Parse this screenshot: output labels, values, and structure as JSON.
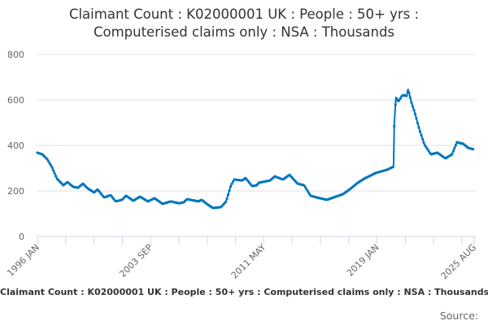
{
  "chart_data": {
    "type": "line",
    "title_line1": "Claimant Count : K02000001 UK : People : 50+ yrs :",
    "title_line2": "Computerised claims only : NSA : Thousands",
    "xlabel": "",
    "ylabel": "",
    "ylim": [
      0,
      800
    ],
    "yticks": [
      "0",
      "200",
      "400",
      "600",
      "800"
    ],
    "xlim": [
      1996.0,
      2025.58
    ],
    "xtick_labels": [
      {
        "label": "1996 JAN",
        "x": 1996.0
      },
      {
        "label": "2003 SEP",
        "x": 2003.67
      },
      {
        "label": "2011 MAY",
        "x": 2011.33
      },
      {
        "label": "2019 JAN",
        "x": 2019.0
      },
      {
        "label": "2025 AUG",
        "x": 2025.58
      }
    ],
    "minor_tick_interval_years": 1.9167,
    "grid": true,
    "legend": "none",
    "line_color": "#0076bd",
    "series": [
      {
        "name": "Claimant Count 50+ (thousands)",
        "points": [
          [
            1996.0,
            368
          ],
          [
            1996.33,
            361
          ],
          [
            1996.66,
            340
          ],
          [
            1996.99,
            304
          ],
          [
            1997.32,
            254
          ],
          [
            1997.76,
            225
          ],
          [
            1998.04,
            239
          ],
          [
            1998.42,
            218
          ],
          [
            1998.75,
            214
          ],
          [
            1999.08,
            232
          ],
          [
            1999.41,
            211
          ],
          [
            1999.85,
            193
          ],
          [
            2000.07,
            207
          ],
          [
            2000.52,
            171
          ],
          [
            2000.96,
            182
          ],
          [
            2001.29,
            154
          ],
          [
            2001.73,
            161
          ],
          [
            2002.0,
            179
          ],
          [
            2002.5,
            157
          ],
          [
            2002.94,
            175
          ],
          [
            2003.49,
            154
          ],
          [
            2003.93,
            168
          ],
          [
            2004.48,
            143
          ],
          [
            2005.03,
            154
          ],
          [
            2005.58,
            146
          ],
          [
            2005.91,
            150
          ],
          [
            2006.13,
            164
          ],
          [
            2006.9,
            154
          ],
          [
            2007.12,
            161
          ],
          [
            2007.56,
            139
          ],
          [
            2007.89,
            125
          ],
          [
            2008.44,
            129
          ],
          [
            2008.78,
            154
          ],
          [
            2009.11,
            225
          ],
          [
            2009.33,
            250
          ],
          [
            2009.88,
            246
          ],
          [
            2010.1,
            257
          ],
          [
            2010.54,
            221
          ],
          [
            2010.87,
            225
          ],
          [
            2010.98,
            236
          ],
          [
            2011.75,
            246
          ],
          [
            2012.08,
            264
          ],
          [
            2012.63,
            250
          ],
          [
            2013.07,
            271
          ],
          [
            2013.62,
            232
          ],
          [
            2014.06,
            225
          ],
          [
            2014.5,
            179
          ],
          [
            2014.94,
            171
          ],
          [
            2015.6,
            161
          ],
          [
            2016.04,
            171
          ],
          [
            2016.7,
            186
          ],
          [
            2017.15,
            207
          ],
          [
            2017.7,
            236
          ],
          [
            2018.14,
            254
          ],
          [
            2018.91,
            279
          ],
          [
            2019.68,
            293
          ],
          [
            2020.12,
            307
          ],
          [
            2020.17,
            496
          ],
          [
            2020.28,
            611
          ],
          [
            2020.45,
            593
          ],
          [
            2020.72,
            621
          ],
          [
            2021.0,
            618
          ],
          [
            2021.11,
            646
          ],
          [
            2021.33,
            589
          ],
          [
            2021.55,
            546
          ],
          [
            2021.88,
            468
          ],
          [
            2022.21,
            404
          ],
          [
            2022.65,
            361
          ],
          [
            2023.09,
            368
          ],
          [
            2023.64,
            343
          ],
          [
            2024.08,
            361
          ],
          [
            2024.41,
            414
          ],
          [
            2024.85,
            407
          ],
          [
            2025.18,
            389
          ],
          [
            2025.58,
            382
          ]
        ]
      }
    ]
  },
  "footer": {
    "title": "Claimant Count : K02000001 UK : People : 50+ yrs : Computerised claims only : NSA : Thousands",
    "source": "Source:"
  }
}
